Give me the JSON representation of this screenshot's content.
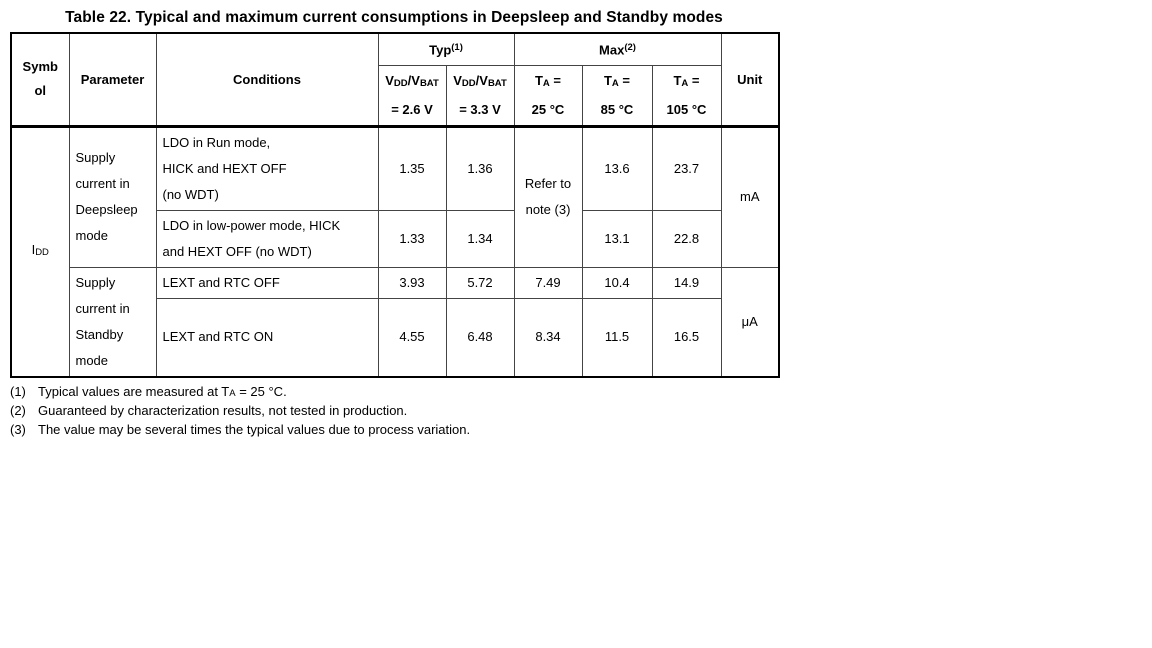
{
  "title": "Table 22. Typical and maximum current consumptions in Deepsleep and Standby modes",
  "table": {
    "header": {
      "symbol_lines": [
        "Symb",
        "ol"
      ],
      "parameter": "Parameter",
      "conditions": "Conditions",
      "typ": {
        "text": "Typ",
        "sup": "(1)"
      },
      "max": {
        "text": "Max",
        "sup": "(2)"
      },
      "vdd_cols": [
        {
          "p1": "V",
          "s1": "DD",
          "p2": "/V",
          "s2": "BAT",
          "line2": "= 2.6 V"
        },
        {
          "p1": "V",
          "s1": "DD",
          "p2": "/V",
          "s2": "BAT",
          "line2": "= 3.3 V"
        }
      ],
      "ta_cols": [
        {
          "p1": "T",
          "s1": "A",
          "p2": " =",
          "line2": "25 °C"
        },
        {
          "p1": "T",
          "s1": "A",
          "p2": " =",
          "line2": "85 °C"
        },
        {
          "p1": "T",
          "s1": "A",
          "p2": " =",
          "line2": "105 °C"
        }
      ],
      "unit": "Unit"
    },
    "symbol": {
      "base": "I",
      "sub": "DD"
    },
    "groups": [
      {
        "parameter": "Supply current in Deepsleep mode",
        "unit": "mA",
        "ta25_note_lines": [
          "Refer to",
          "note (3)"
        ],
        "rows": [
          {
            "conditions_lines": [
              "LDO in Run mode,",
              "HICK and HEXT OFF",
              "(no WDT)"
            ],
            "typ_2v6": "1.35",
            "typ_3v3": "1.36",
            "max_85": "13.6",
            "max_105": "23.7"
          },
          {
            "conditions_lines": [
              "LDO in low-power mode, HICK",
              "and HEXT OFF (no WDT)"
            ],
            "typ_2v6": "1.33",
            "typ_3v3": "1.34",
            "max_85": "13.1",
            "max_105": "22.8"
          }
        ]
      },
      {
        "parameter": "Supply current in Standby mode",
        "unit": "μA",
        "rows": [
          {
            "conditions_lines": [
              "LEXT and RTC OFF"
            ],
            "typ_2v6": "3.93",
            "typ_3v3": "5.72",
            "max_25": "7.49",
            "max_85": "10.4",
            "max_105": "14.9"
          },
          {
            "conditions_lines": [
              "LEXT and RTC ON"
            ],
            "typ_2v6": "4.55",
            "typ_3v3": "6.48",
            "max_25": "8.34",
            "max_85": "11.5",
            "max_105": "16.5"
          }
        ]
      }
    ]
  },
  "footnotes": [
    {
      "num": "(1)",
      "pre": "Typical values are measured at T",
      "sub": "A",
      "post": " = 25 °C."
    },
    {
      "num": "(2)",
      "pre": "Guaranteed by characterization results, not tested in production.",
      "sub": "",
      "post": ""
    },
    {
      "num": "(3)",
      "pre": "The value may be several times the typical values due to process variation.",
      "sub": "",
      "post": ""
    }
  ]
}
